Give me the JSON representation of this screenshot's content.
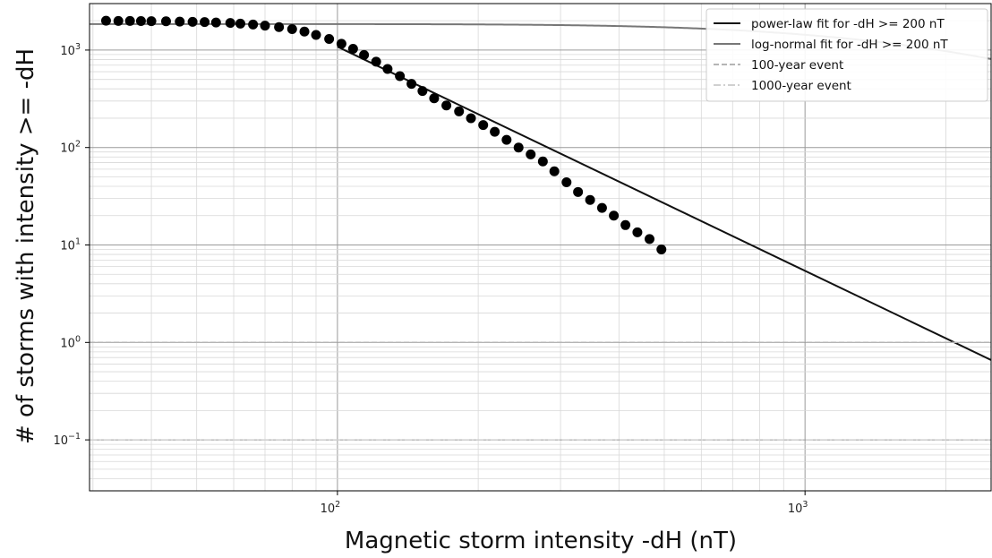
{
  "chart_data": {
    "type": "scatter",
    "title": "",
    "xlabel": "Magnetic storm intensity -dH (nT)",
    "ylabel": "# of storms with intensity >= -dH",
    "xscale": "log",
    "yscale": "log",
    "xlim": [
      29.5,
      2500
    ],
    "ylim": [
      0.03,
      3000
    ],
    "grid": true,
    "legend_position": "top-right",
    "x_ticks": [
      {
        "value": 100,
        "label": "10",
        "exp": "2"
      },
      {
        "value": 1000,
        "label": "10",
        "exp": "3"
      }
    ],
    "y_ticks": [
      {
        "value": 0.1,
        "label": "10",
        "exp": "−1"
      },
      {
        "value": 1,
        "label": "10",
        "exp": "0"
      },
      {
        "value": 10,
        "label": "10",
        "exp": "1"
      },
      {
        "value": 100,
        "label": "10",
        "exp": "2"
      },
      {
        "value": 1000,
        "label": "10",
        "exp": "3"
      }
    ],
    "points": {
      "x": [
        32,
        34,
        36,
        38,
        40,
        43,
        46,
        49,
        52,
        55,
        59,
        62,
        66,
        70,
        75,
        80,
        85,
        90,
        96,
        102,
        108,
        114,
        121,
        128,
        136,
        144,
        152,
        161,
        171,
        182,
        193,
        205,
        217,
        230,
        244,
        259,
        275,
        291,
        309,
        327,
        347,
        368,
        390,
        413,
        438,
        465,
        493
      ],
      "y": [
        2000,
        1990,
        1990,
        1985,
        1980,
        1975,
        1960,
        1950,
        1940,
        1920,
        1900,
        1870,
        1830,
        1780,
        1720,
        1640,
        1550,
        1430,
        1300,
        1160,
        1030,
        890,
        760,
        640,
        540,
        450,
        380,
        320,
        270,
        235,
        200,
        170,
        145,
        120,
        100,
        85,
        72,
        57,
        44,
        35,
        29,
        24,
        20,
        16,
        13.5,
        11.5,
        9
      ]
    },
    "series": [
      {
        "name": "power-law fit for -dH >= 200 nT",
        "color": "#111111",
        "style": "solid",
        "x_range": [
          100,
          2500
        ],
        "anchor": {
          "x": 200,
          "y": 220
        },
        "slope": -2.3
      },
      {
        "name": "log-normal fit for -dH >= 200 nT",
        "color": "#777777",
        "style": "solid",
        "amplitude": 1850,
        "mu": 3.33,
        "sigma": 1.0
      },
      {
        "name": "100-year event",
        "color": "#b5b5b5",
        "style": "dashed",
        "y": 1
      },
      {
        "name": "1000-year event",
        "color": "#d0d0d0",
        "style": "dashdot",
        "y": 0.1
      }
    ]
  }
}
